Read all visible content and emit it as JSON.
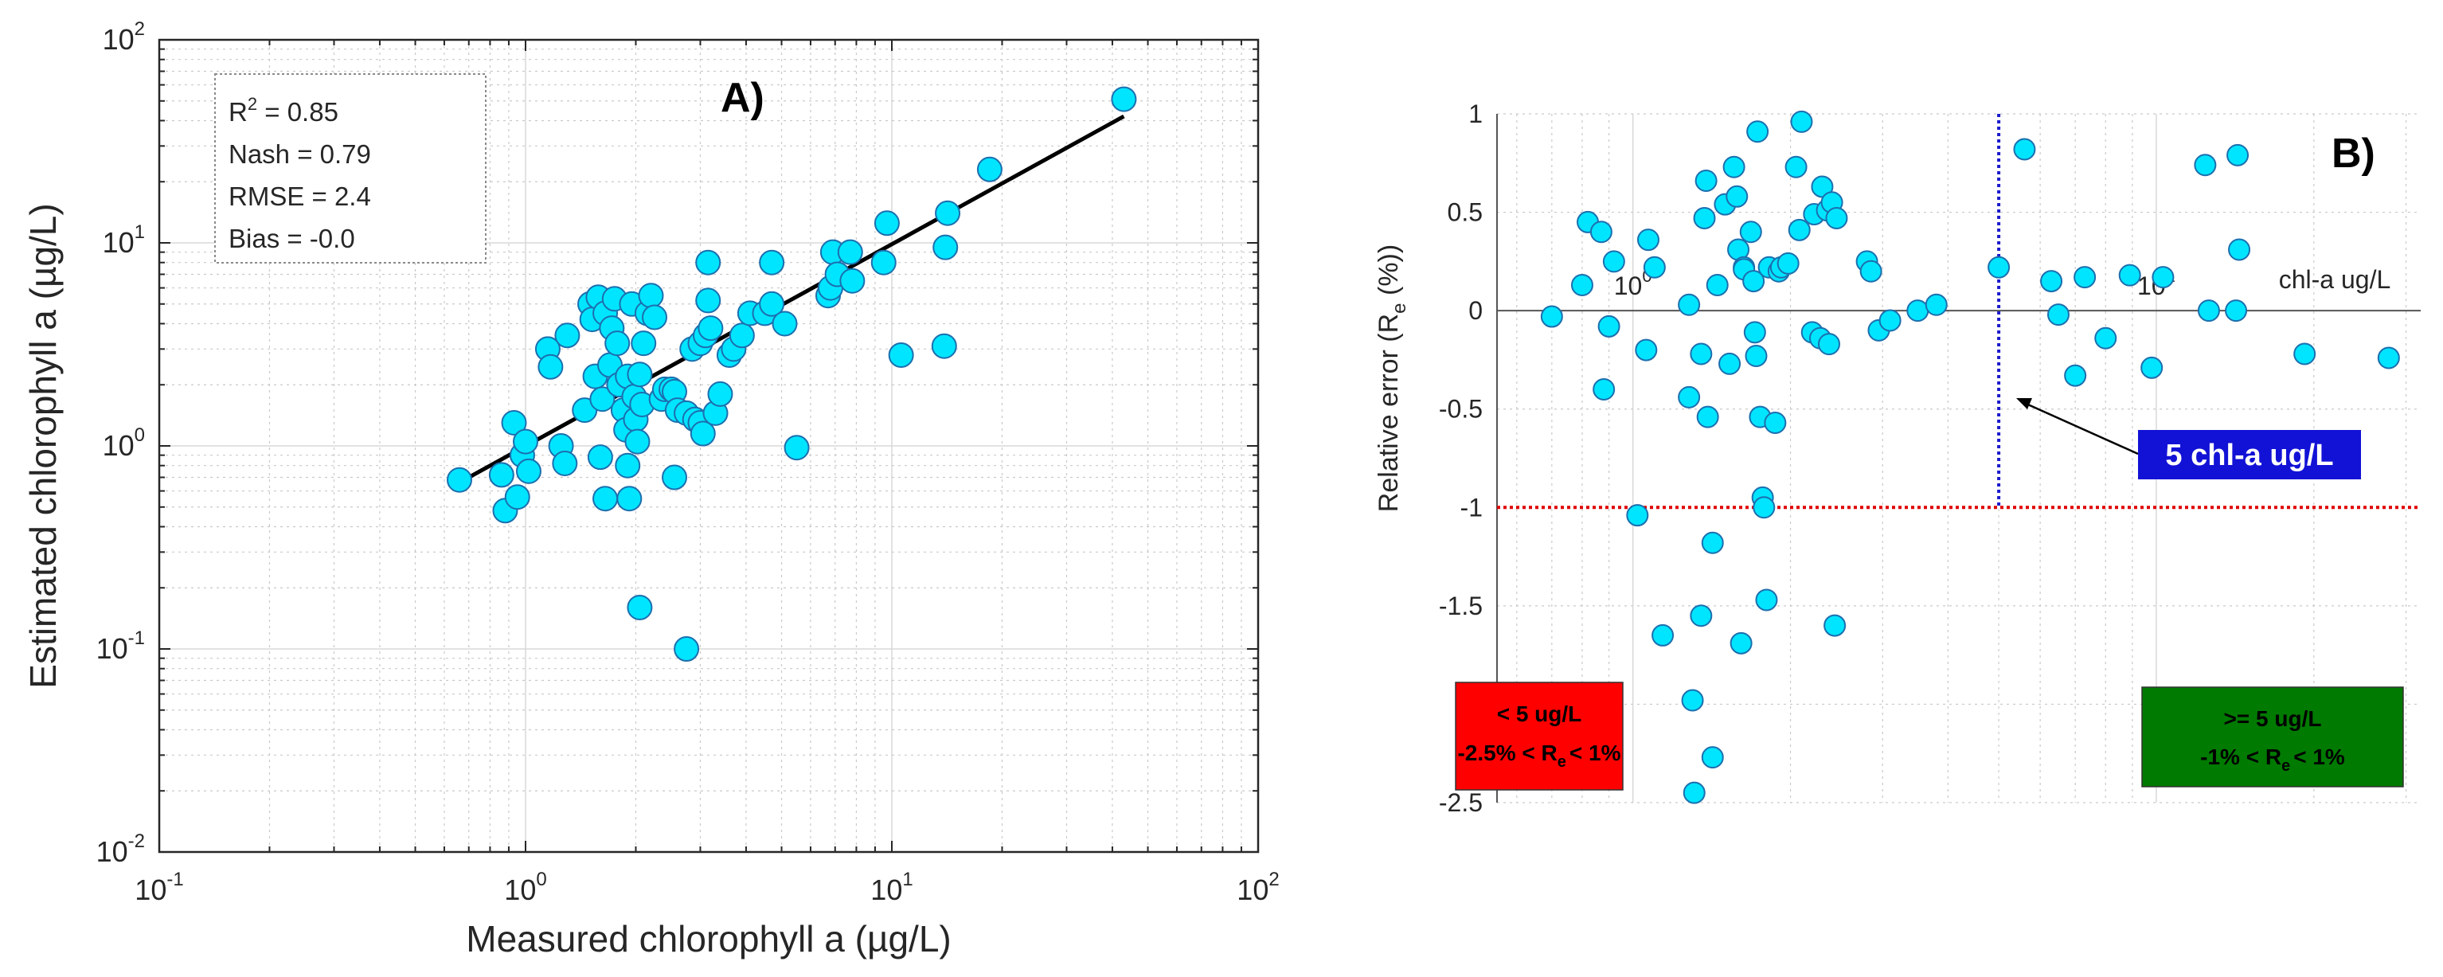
{
  "chart_data": [
    {
      "type": "scatter",
      "panel_label": "A)",
      "xlabel": "Measured chlorophyll a (µg/L)",
      "ylabel": "Estimated chlorophyll a (µg/L)",
      "xscale": "log",
      "yscale": "log",
      "xlim": [
        0.1,
        100
      ],
      "ylim": [
        0.01,
        100
      ],
      "grid": true,
      "x_ticks": [
        {
          "base": "10",
          "exp": "-1"
        },
        {
          "base": "10",
          "exp": "0"
        },
        {
          "base": "10",
          "exp": "1"
        },
        {
          "base": "10",
          "exp": "2"
        }
      ],
      "y_ticks": [
        {
          "base": "10",
          "exp": "-2"
        },
        {
          "base": "10",
          "exp": "-1"
        },
        {
          "base": "10",
          "exp": "0"
        },
        {
          "base": "10",
          "exp": "1"
        },
        {
          "base": "10",
          "exp": "2"
        }
      ],
      "stats": {
        "r2_label": "R",
        "r2_sup": "2",
        "r2_value": " = 0.85",
        "nash": "Nash = 0.79",
        "rmse": "RMSE = 2.4",
        "bias": "Bias = -0.0"
      },
      "fit_line": {
        "x": [
          0.68,
          43
        ],
        "y": [
          0.68,
          42
        ]
      },
      "marker_color": "#00e5ff",
      "marker_edge_color": "#1c6fae",
      "points": [
        [
          0.66,
          0.68
        ],
        [
          0.86,
          0.72
        ],
        [
          0.88,
          0.48
        ],
        [
          0.93,
          1.3
        ],
        [
          0.95,
          0.56
        ],
        [
          0.98,
          0.9
        ],
        [
          1.0,
          1.05
        ],
        [
          1.02,
          0.75
        ],
        [
          1.15,
          3.0
        ],
        [
          1.17,
          2.45
        ],
        [
          1.25,
          1.0
        ],
        [
          1.28,
          0.82
        ],
        [
          1.3,
          3.5
        ],
        [
          1.45,
          1.5
        ],
        [
          1.5,
          5.0
        ],
        [
          1.52,
          4.2
        ],
        [
          1.55,
          2.2
        ],
        [
          1.58,
          5.4
        ],
        [
          1.6,
          0.88
        ],
        [
          1.62,
          1.7
        ],
        [
          1.65,
          4.5
        ],
        [
          1.65,
          0.55
        ],
        [
          1.7,
          2.5
        ],
        [
          1.72,
          3.8
        ],
        [
          1.75,
          5.3
        ],
        [
          1.78,
          3.2
        ],
        [
          1.8,
          2.0
        ],
        [
          1.85,
          1.5
        ],
        [
          1.88,
          1.2
        ],
        [
          1.9,
          0.8
        ],
        [
          1.9,
          2.2
        ],
        [
          1.92,
          0.55
        ],
        [
          1.95,
          5.0
        ],
        [
          1.98,
          1.75
        ],
        [
          2.0,
          1.35
        ],
        [
          2.02,
          1.05
        ],
        [
          2.05,
          2.25
        ],
        [
          2.08,
          1.6
        ],
        [
          2.1,
          3.2
        ],
        [
          2.05,
          0.16
        ],
        [
          2.15,
          4.5
        ],
        [
          2.2,
          5.5
        ],
        [
          2.25,
          4.3
        ],
        [
          2.35,
          1.7
        ],
        [
          2.4,
          1.9
        ],
        [
          2.5,
          1.9
        ],
        [
          2.55,
          1.85
        ],
        [
          2.55,
          0.7
        ],
        [
          2.6,
          1.5
        ],
        [
          2.75,
          0.1
        ],
        [
          2.75,
          1.45
        ],
        [
          2.85,
          3.0
        ],
        [
          2.9,
          1.35
        ],
        [
          3.0,
          3.2
        ],
        [
          3.0,
          1.3
        ],
        [
          3.05,
          1.15
        ],
        [
          3.1,
          3.5
        ],
        [
          3.15,
          5.2
        ],
        [
          3.15,
          8.0
        ],
        [
          3.2,
          3.8
        ],
        [
          3.3,
          1.45
        ],
        [
          3.4,
          1.8
        ],
        [
          3.6,
          2.8
        ],
        [
          3.7,
          3.0
        ],
        [
          3.9,
          3.5
        ],
        [
          4.1,
          4.5
        ],
        [
          4.5,
          4.5
        ],
        [
          4.7,
          8.0
        ],
        [
          4.7,
          5.0
        ],
        [
          5.1,
          4.0
        ],
        [
          5.5,
          0.98
        ],
        [
          6.7,
          5.5
        ],
        [
          6.8,
          6.0
        ],
        [
          6.9,
          9.0
        ],
        [
          7.1,
          7.0
        ],
        [
          7.7,
          9.0
        ],
        [
          7.8,
          6.5
        ],
        [
          9.5,
          8.0
        ],
        [
          9.7,
          12.5
        ],
        [
          10.6,
          2.8
        ],
        [
          13.9,
          3.1
        ],
        [
          14.0,
          9.5
        ],
        [
          14.2,
          14.0
        ],
        [
          18.5,
          23.0
        ],
        [
          43.0,
          51.0
        ]
      ]
    },
    {
      "type": "scatter",
      "panel_label": "B)",
      "xlabel": "chl-a ug/L",
      "ylabel_main": "Relative error (R",
      "ylabel_sub": "e",
      "ylabel_end": " (%))",
      "xscale": "log",
      "xlim": [
        0.55,
        32
      ],
      "ylim": [
        -2.5,
        1
      ],
      "x_ticks": [
        {
          "base": "10",
          "exp": "0",
          "value": 1
        },
        {
          "base": "10",
          "exp": "1",
          "value": 10
        }
      ],
      "y_ticks": [
        "1",
        "0.5",
        "0",
        "-0.5",
        "-1",
        "-1.5",
        "-2",
        "-2.5"
      ],
      "y_tick_values": [
        1,
        0.5,
        0,
        -0.5,
        -1,
        -1.5,
        -2,
        -2.5
      ],
      "threshold_x": 5,
      "threshold_line_color": "#1a1acc",
      "limit_y": -1,
      "limit_line_color": "#e00000",
      "annotation": "5 chl-a ug/L",
      "annotation_color": "#1212d6",
      "box_low": {
        "line1": "< 5 ug/L",
        "line2_a": "-2.5% < R",
        "line2_sub": "e",
        "line2_b": "< 1%",
        "color": "#ff0000"
      },
      "box_high": {
        "line1": ">= 5 ug/L",
        "line2_a": "-1% < R",
        "line2_sub": "e",
        "line2_b": "< 1%",
        "color": "#007a00"
      },
      "marker_color": "#00e5ff",
      "marker_edge_color": "#1c6fae",
      "points": [
        [
          0.7,
          -0.03
        ],
        [
          0.8,
          0.13
        ],
        [
          0.82,
          0.45
        ],
        [
          0.87,
          0.4
        ],
        [
          0.88,
          -0.4
        ],
        [
          0.9,
          -0.08
        ],
        [
          0.92,
          0.25
        ],
        [
          1.02,
          -1.04
        ],
        [
          1.06,
          -0.2
        ],
        [
          1.07,
          0.36
        ],
        [
          1.1,
          0.22
        ],
        [
          1.14,
          -1.65
        ],
        [
          1.28,
          0.03
        ],
        [
          1.28,
          -0.44
        ],
        [
          1.3,
          -1.98
        ],
        [
          1.31,
          -2.45
        ],
        [
          1.35,
          -1.55
        ],
        [
          1.35,
          -0.22
        ],
        [
          1.37,
          0.47
        ],
        [
          1.38,
          0.66
        ],
        [
          1.39,
          -0.54
        ],
        [
          1.42,
          -1.18
        ],
        [
          1.42,
          -2.27
        ],
        [
          1.45,
          0.13
        ],
        [
          1.5,
          0.54
        ],
        [
          1.53,
          -0.27
        ],
        [
          1.56,
          0.73
        ],
        [
          1.58,
          0.58
        ],
        [
          1.59,
          0.31
        ],
        [
          1.61,
          -1.69
        ],
        [
          1.63,
          0.22
        ],
        [
          1.63,
          0.21
        ],
        [
          1.68,
          0.4
        ],
        [
          1.7,
          0.15
        ],
        [
          1.71,
          -0.11
        ],
        [
          1.72,
          -0.23
        ],
        [
          1.73,
          0.91
        ],
        [
          1.75,
          -0.54
        ],
        [
          1.77,
          -0.95
        ],
        [
          1.78,
          -1.0
        ],
        [
          1.8,
          -1.47
        ],
        [
          1.82,
          0.22
        ],
        [
          1.87,
          -0.57
        ],
        [
          1.9,
          0.2
        ],
        [
          1.92,
          0.22
        ],
        [
          1.98,
          0.24
        ],
        [
          2.05,
          0.73
        ],
        [
          2.08,
          0.41
        ],
        [
          2.1,
          0.96
        ],
        [
          2.2,
          -0.11
        ],
        [
          2.22,
          0.49
        ],
        [
          2.28,
          -0.14
        ],
        [
          2.3,
          0.63
        ],
        [
          2.35,
          0.51
        ],
        [
          2.37,
          -0.17
        ],
        [
          2.4,
          0.55
        ],
        [
          2.43,
          -1.6
        ],
        [
          2.45,
          0.47
        ],
        [
          2.8,
          0.25
        ],
        [
          2.85,
          0.2
        ],
        [
          2.95,
          -0.1
        ],
        [
          3.1,
          -0.05
        ],
        [
          3.5,
          0.0
        ],
        [
          3.8,
          0.03
        ],
        [
          5.0,
          0.22
        ],
        [
          5.6,
          0.82
        ],
        [
          6.3,
          0.15
        ],
        [
          6.5,
          -0.02
        ],
        [
          7.0,
          -0.33
        ],
        [
          7.3,
          0.17
        ],
        [
          8.0,
          -0.14
        ],
        [
          8.9,
          0.18
        ],
        [
          9.8,
          -0.29
        ],
        [
          10.3,
          0.17
        ],
        [
          12.4,
          0.74
        ],
        [
          12.6,
          0.0
        ],
        [
          14.2,
          0.0
        ],
        [
          14.3,
          0.79
        ],
        [
          14.4,
          0.31
        ],
        [
          19.2,
          -0.22
        ],
        [
          27.8,
          -0.24
        ]
      ]
    }
  ]
}
